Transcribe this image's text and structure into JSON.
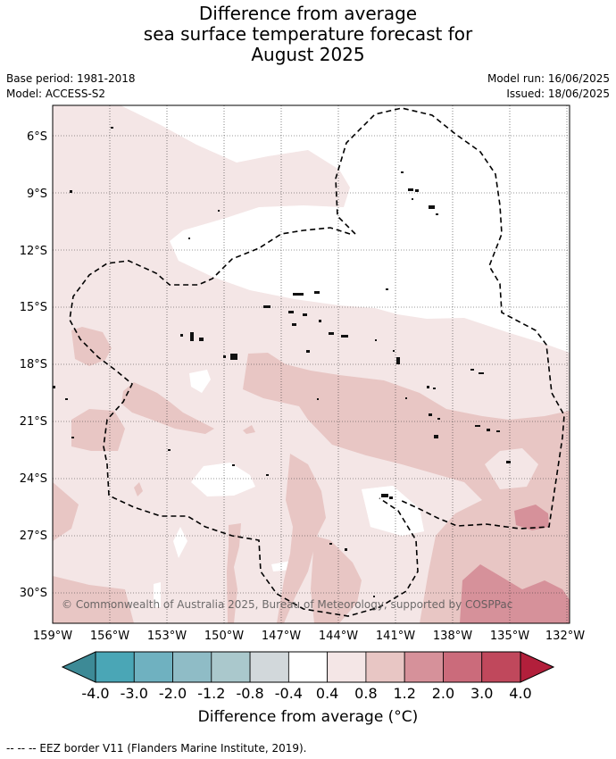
{
  "title_lines": [
    "Difference from average",
    "sea surface temperature forecast for",
    "August 2025"
  ],
  "info": {
    "base_period": "Base period: 1981-2018",
    "model": "Model: ACCESS-S2",
    "model_run": "Model run: 16/06/2025",
    "issued": "Issued: 18/06/2025"
  },
  "map": {
    "lat_ticks": [
      "6°S",
      "9°S",
      "12°S",
      "15°S",
      "18°S",
      "21°S",
      "24°S",
      "27°S",
      "30°S"
    ],
    "lon_ticks": [
      "159°W",
      "156°W",
      "153°W",
      "150°W",
      "147°W",
      "144°W",
      "141°W",
      "138°W",
      "135°W",
      "132°W"
    ],
    "copyright": "© Commonwealth of Australia 2025, Bureau of Meteorology, supported by COSPPac",
    "extent": {
      "lon_min": -159,
      "lon_max": -132,
      "lat_max": -4.5,
      "lat_min": -31.7
    }
  },
  "colorbar": {
    "labels": [
      "-4.0",
      "-3.0",
      "-2.0",
      "-1.2",
      "-0.8",
      "-0.4",
      "0.4",
      "0.8",
      "1.2",
      "2.0",
      "3.0",
      "4.0"
    ],
    "colors": [
      "#3d8a96",
      "#4aa6b6",
      "#6fb1c0",
      "#8fbcc6",
      "#aac8cc",
      "#d2d8db",
      "#ffffff",
      "#f4e6e6",
      "#e8c6c4",
      "#d6919a",
      "#cb6b7b",
      "#c0485c",
      "#b21f3b"
    ],
    "title": "Difference from average (°C)"
  },
  "footer": "--  --  -- EEZ border V11 (Flanders Marine Institute, 2019)."
}
